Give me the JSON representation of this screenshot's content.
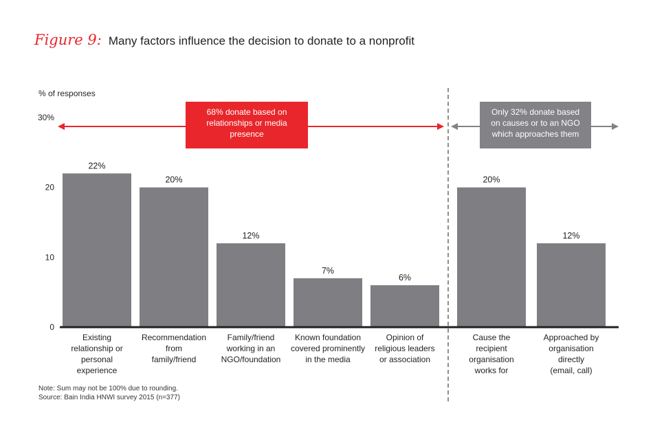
{
  "title": {
    "figure_label": "Figure 9:",
    "text": "Many factors influence the decision to donate to a nonprofit"
  },
  "chart_data": {
    "type": "bar",
    "title": "Many factors influence the decision to donate to a nonprofit",
    "ylabel": "% of responses",
    "ylim": [
      0,
      30
    ],
    "yticks": [
      "0",
      "10",
      "20",
      "30%"
    ],
    "yticks_values": [
      0,
      10,
      20,
      30
    ],
    "categories": [
      [
        "Existing",
        "relationship or",
        "personal",
        "experience"
      ],
      [
        "Recommendation",
        "from",
        "family/friend"
      ],
      [
        "Family/friend",
        "working in an",
        "NGO/foundation"
      ],
      [
        "Known foundation",
        "covered prominently",
        "in the media"
      ],
      [
        "Opinion of",
        "religious leaders",
        "or association"
      ],
      [
        "Cause the",
        "recipient",
        "organisation",
        "works for"
      ],
      [
        "Approached by",
        "organisation",
        "directly",
        "(email, call)"
      ]
    ],
    "values": [
      22,
      20,
      12,
      7,
      6,
      20,
      12
    ],
    "value_labels": [
      "22%",
      "20%",
      "12%",
      "7%",
      "6%",
      "20%",
      "12%"
    ],
    "groups": [
      {
        "name": "68% donate based on relationships or media presence",
        "lines": [
          "68% donate based on",
          "relationships or media",
          "presence"
        ],
        "color": "#e8262b",
        "bars": [
          0,
          1,
          2,
          3,
          4
        ]
      },
      {
        "name": "Only 32% donate based on causes or to an NGO which approaches them",
        "lines": [
          "Only 32% donate based",
          "on causes or to an NGO",
          "which approaches them"
        ],
        "color": "#828287",
        "bars": [
          5,
          6
        ]
      }
    ],
    "bar_color": "#7e7e83",
    "grid": false
  },
  "notes": [
    "Note:  Sum may not be 100% due to rounding.",
    "Source: Bain India HNWI survey 2015 (n=377)"
  ]
}
